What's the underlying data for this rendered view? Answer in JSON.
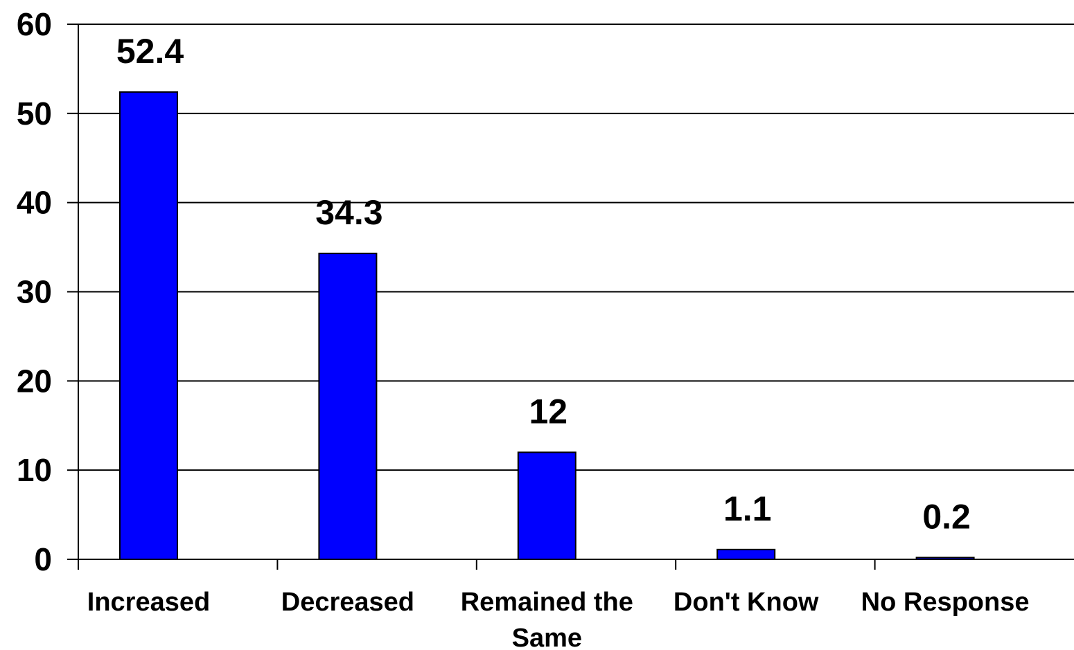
{
  "chart_data": {
    "type": "bar",
    "categories": [
      "Increased",
      "Decreased",
      "Remained the Same",
      "Don't Know",
      "No Response"
    ],
    "category_lines": [
      [
        "Increased"
      ],
      [
        "Decreased"
      ],
      [
        "Remained the",
        "Same"
      ],
      [
        "Don't Know"
      ],
      [
        "No Response"
      ]
    ],
    "values": [
      52.4,
      34.3,
      12,
      1.1,
      0.2
    ],
    "value_labels": [
      "52.4",
      "34.3",
      "12",
      "1.1",
      "0.2"
    ],
    "title": "",
    "xlabel": "",
    "ylabel": "",
    "ylim": [
      0,
      60
    ],
    "yticks": [
      0,
      10,
      20,
      30,
      40,
      50,
      60
    ],
    "grid": true,
    "legend": "none",
    "bar_color": "#0000FF"
  }
}
